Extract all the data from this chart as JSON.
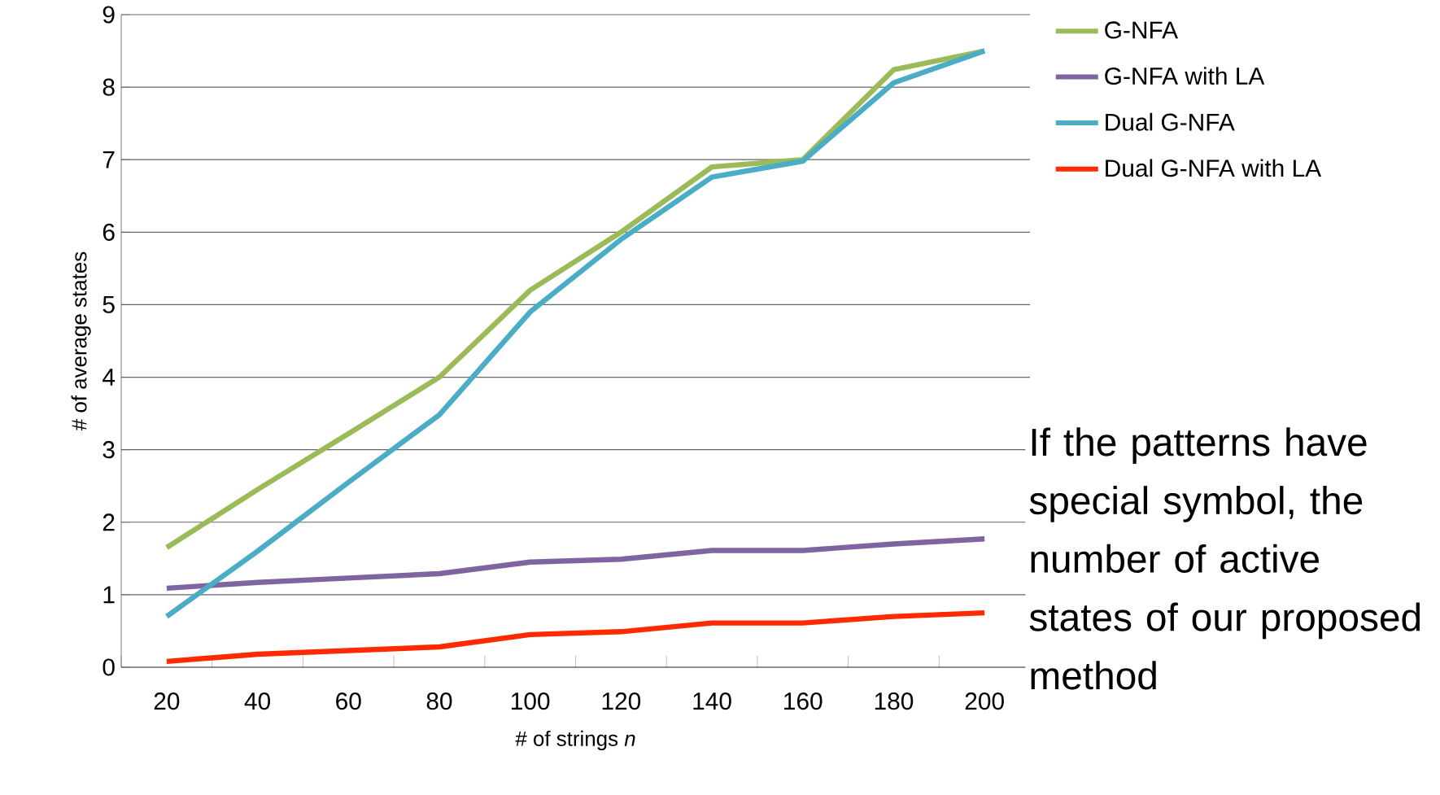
{
  "chart_data": {
    "type": "line",
    "xlabel": "# of strings *n*",
    "ylabel": "# of average states",
    "categories": [
      "20",
      "40",
      "60",
      "80",
      "100",
      "120",
      "140",
      "160",
      "180",
      "200"
    ],
    "series": [
      {
        "name": "G-NFA",
        "color": "#9bbb59",
        "values": [
          1.65,
          2.45,
          3.22,
          4.0,
          5.2,
          6.0,
          6.9,
          7.0,
          8.24,
          8.5
        ]
      },
      {
        "name": "G-NFA with LA",
        "color": "#8064a2",
        "values": [
          1.09,
          1.17,
          1.23,
          1.29,
          1.45,
          1.49,
          1.61,
          1.61,
          1.7,
          1.77
        ]
      },
      {
        "name": "Dual G-NFA",
        "color": "#4bacc6",
        "values": [
          0.7,
          1.6,
          2.55,
          3.48,
          4.9,
          5.9,
          6.76,
          6.98,
          8.06,
          8.5
        ]
      },
      {
        "name": "Dual G-NFA with LA",
        "color": "#ff2a00",
        "values": [
          0.08,
          0.18,
          0.23,
          0.28,
          0.45,
          0.49,
          0.61,
          0.61,
          0.7,
          0.75
        ]
      }
    ],
    "ylim": [
      0,
      9
    ],
    "yticks": [
      0,
      1,
      2,
      3,
      4,
      5,
      6,
      7,
      8,
      9
    ],
    "grid": "y",
    "legend": "top right",
    "marker": "none",
    "line_style": "solid",
    "annotations": [
      "If the patterns have special symbol, the number of active states of our proposed method"
    ]
  }
}
